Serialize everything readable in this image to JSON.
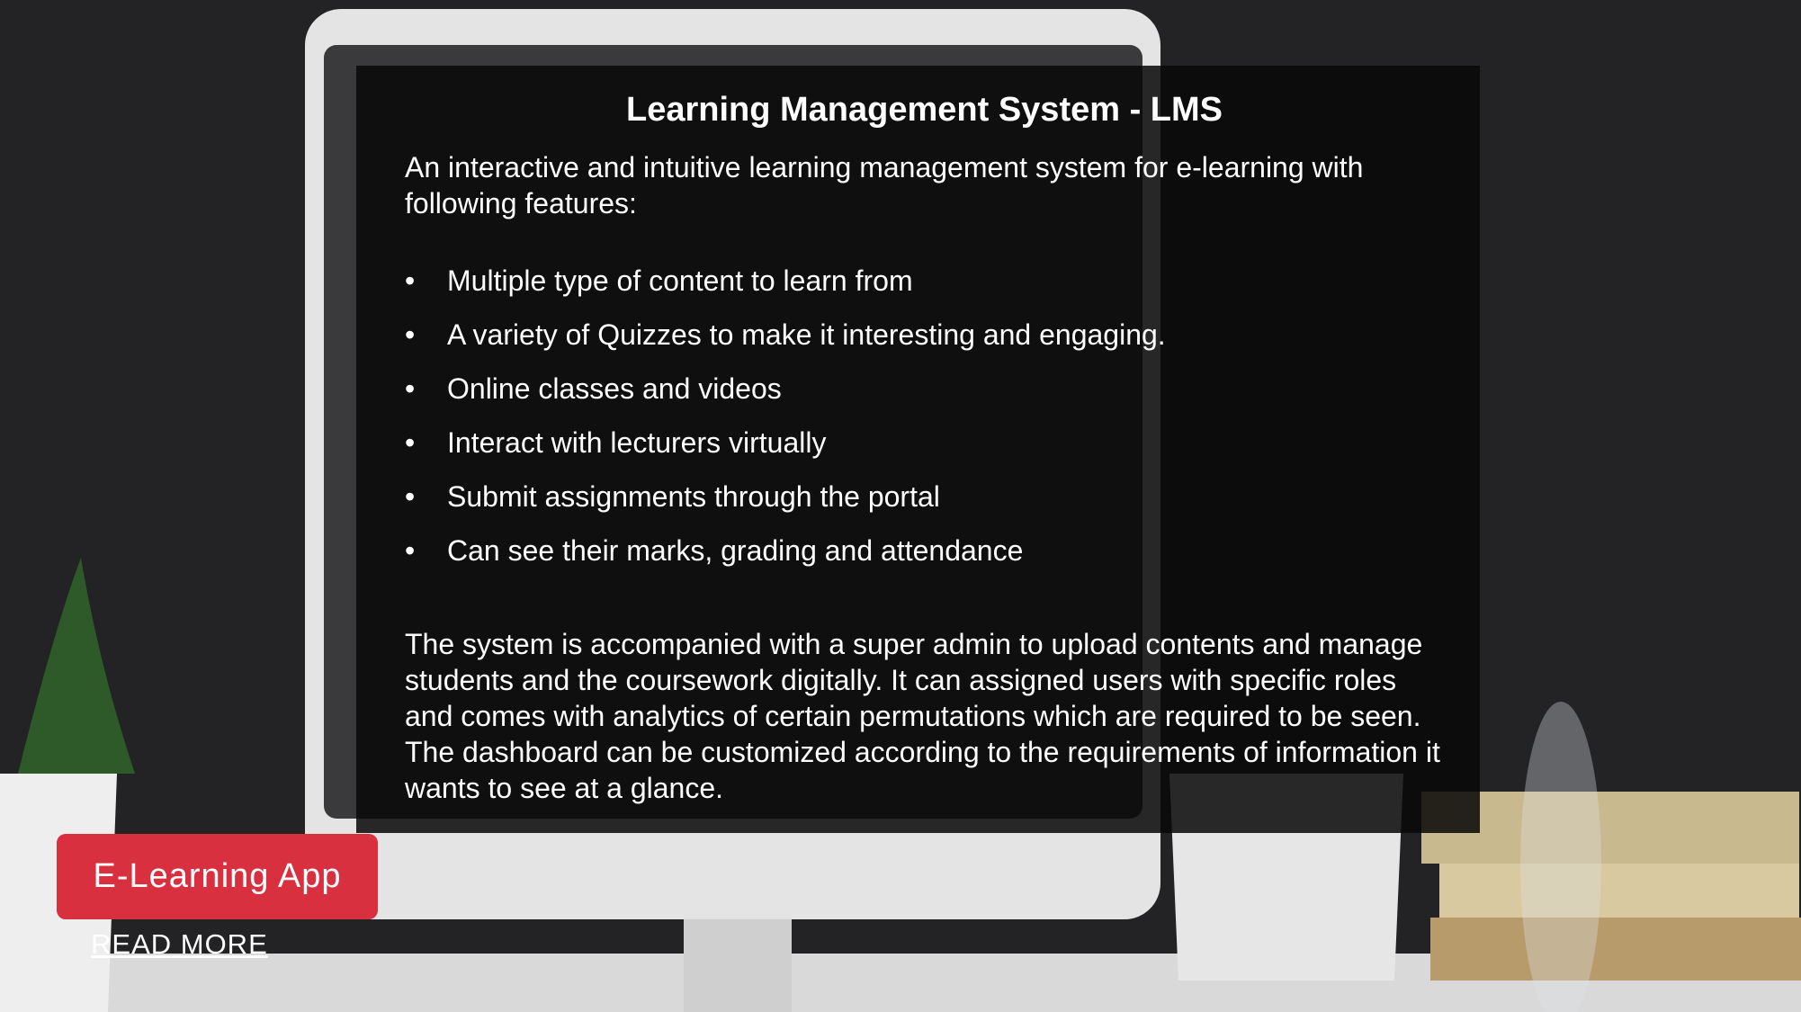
{
  "panel": {
    "title": "Learning Management System - LMS",
    "intro": "An interactive and intuitive learning management system for e-learning with following features:",
    "features": [
      "Multiple type of content to learn from",
      "A variety of Quizzes to make it interesting and engaging.",
      "Online classes and videos",
      "Interact with lecturers virtually",
      "Submit assignments through the portal",
      "Can see their marks, grading and attendance"
    ],
    "description": "The system is accompanied with a super admin to upload contents and manage students and the coursework digitally. It can assigned users with specific roles and comes with analytics of certain permutations which are required to be seen. The dashboard can be customized according to the requirements of information it wants to see at a glance."
  },
  "button": "E-Learning App",
  "link": "READ MORE"
}
